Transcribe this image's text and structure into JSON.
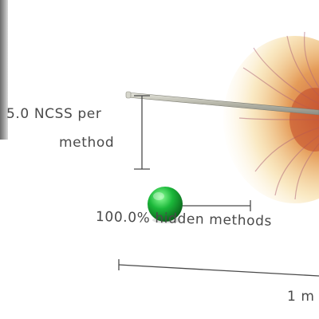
{
  "legend": {
    "ncss_line1": "5.0 NCSS per",
    "ncss_line2": "method",
    "hidden_methods": "100.0% hidden methods",
    "length": "1 m"
  },
  "colors": {
    "marker": "#1bb83a",
    "marker_highlight": "#7dff8a",
    "marker_shadow": "#0a6b1c",
    "ink": "#4a4a4a",
    "stem": "#b5b5a8",
    "blob_core": "#cc6a2a",
    "blob_glow": "#f2c46a",
    "blob_strands": "#b06a7a"
  },
  "icons": {
    "marker": "green-sphere-icon"
  }
}
